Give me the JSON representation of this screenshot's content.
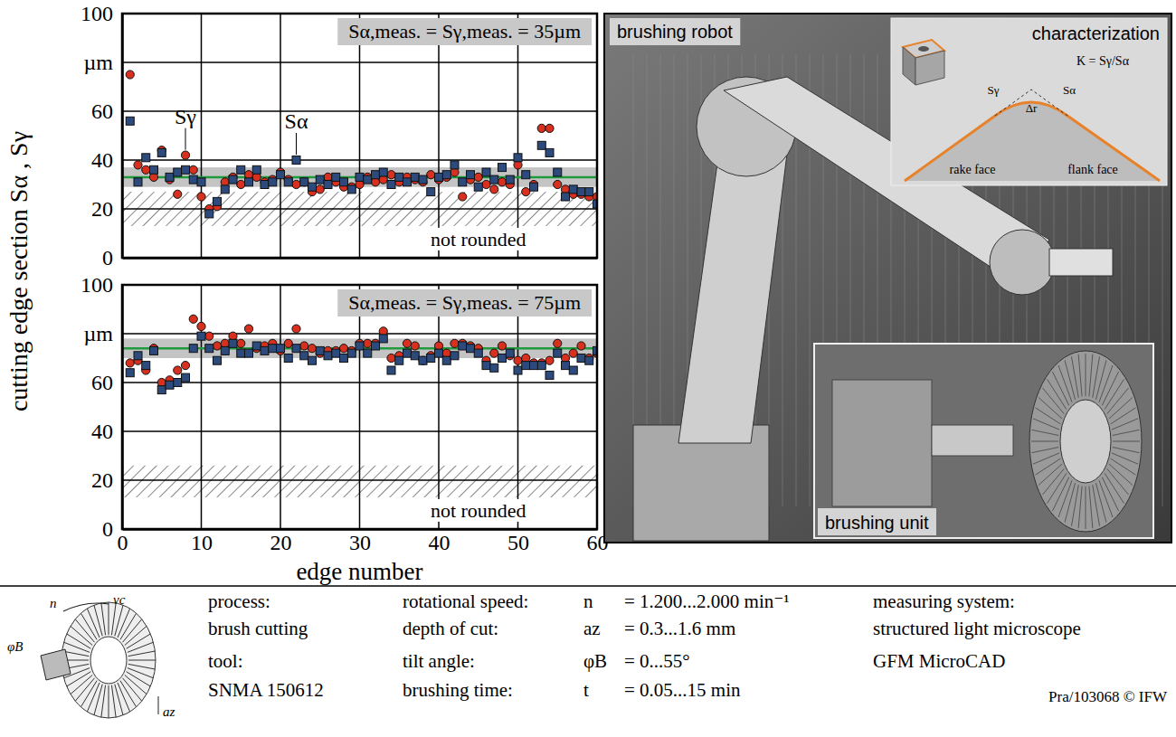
{
  "chart_data": [
    {
      "type": "scatter",
      "title": "Sα,meas. = Sγ,meas. = 35µm",
      "y_label": "cutting edge section Sα , Sγ",
      "x": [
        1,
        2,
        3,
        4,
        5,
        6,
        7,
        8,
        9,
        10,
        11,
        12,
        13,
        14,
        15,
        16,
        17,
        18,
        19,
        20,
        21,
        22,
        23,
        24,
        25,
        26,
        27,
        28,
        29,
        30,
        31,
        32,
        33,
        34,
        35,
        36,
        37,
        38,
        39,
        40,
        41,
        42,
        43,
        44,
        45,
        46,
        47,
        48,
        49,
        50,
        51,
        52,
        53,
        54,
        55,
        56,
        57,
        58,
        59,
        60
      ],
      "series": [
        {
          "name": "Sγ",
          "color": "#d7301f",
          "marker": "circle",
          "values": [
            75,
            38,
            36,
            33,
            44,
            32,
            26,
            42,
            36,
            25,
            20,
            21,
            31,
            33,
            30,
            34,
            33,
            31,
            32,
            35,
            32,
            30,
            31,
            27,
            28,
            33,
            31,
            29,
            29,
            30,
            33,
            31,
            32,
            34,
            31,
            33,
            32,
            31,
            34,
            32,
            33,
            35,
            25,
            32,
            33,
            30,
            28,
            31,
            30,
            38,
            27,
            30,
            53,
            53,
            30,
            28,
            26,
            26,
            25,
            25
          ]
        },
        {
          "name": "Sα",
          "color": "#2c4a7c",
          "marker": "square",
          "values": [
            56,
            31,
            41,
            36,
            43,
            33,
            35,
            36,
            32,
            31,
            18,
            23,
            28,
            32,
            36,
            31,
            36,
            30,
            31,
            34,
            31,
            40,
            31,
            29,
            32,
            30,
            33,
            31,
            28,
            33,
            32,
            34,
            35,
            30,
            33,
            31,
            33,
            32,
            27,
            33,
            34,
            38,
            31,
            34,
            29,
            35,
            32,
            37,
            32,
            41,
            34,
            29,
            46,
            43,
            35,
            25,
            28,
            27,
            27,
            22
          ]
        }
      ],
      "target": 33,
      "tolerance_band": [
        29,
        37
      ],
      "not_rounded_band": [
        13,
        27
      ],
      "annotation": "not rounded",
      "xlim": [
        0,
        60
      ],
      "xticks": [
        0,
        10,
        20,
        30,
        40,
        50,
        60
      ],
      "ylim": [
        0,
        100
      ],
      "yticks": [
        0,
        20,
        40,
        60,
        {
          "value": 80,
          "label": "µm"
        },
        100
      ],
      "grid": true,
      "tick_labels": "y"
    },
    {
      "type": "scatter",
      "title": "Sα,meas. = Sγ,meas. = 75µm",
      "x_label": "edge number",
      "x": [
        1,
        2,
        3,
        4,
        5,
        6,
        7,
        8,
        9,
        10,
        11,
        12,
        13,
        14,
        15,
        16,
        17,
        18,
        19,
        20,
        21,
        22,
        23,
        24,
        25,
        26,
        27,
        28,
        29,
        30,
        31,
        32,
        33,
        34,
        35,
        36,
        37,
        38,
        39,
        40,
        41,
        42,
        43,
        44,
        45,
        46,
        47,
        48,
        49,
        50,
        51,
        52,
        53,
        54,
        55,
        56,
        57,
        58,
        59,
        60
      ],
      "series": [
        {
          "color": "#d7301f",
          "marker": "circle",
          "values": [
            68,
            69,
            65,
            74,
            60,
            61,
            65,
            67,
            86,
            83,
            79,
            75,
            76,
            79,
            76,
            82,
            74,
            75,
            76,
            73,
            76,
            82,
            75,
            74,
            72,
            73,
            73,
            74,
            73,
            76,
            76,
            76,
            81,
            70,
            71,
            76,
            75,
            69,
            71,
            75,
            72,
            76,
            76,
            75,
            74,
            69,
            72,
            75,
            71,
            69,
            70,
            68,
            68,
            69,
            76,
            70,
            72,
            75,
            70,
            72
          ]
        },
        {
          "color": "#2c4a7c",
          "marker": "square",
          "values": [
            64,
            71,
            67,
            73,
            57,
            59,
            60,
            62,
            74,
            79,
            74,
            69,
            73,
            76,
            72,
            72,
            75,
            73,
            74,
            74,
            70,
            74,
            71,
            69,
            73,
            71,
            72,
            70,
            72,
            75,
            72,
            75,
            78,
            65,
            69,
            72,
            71,
            69,
            70,
            72,
            69,
            71,
            75,
            74,
            72,
            67,
            66,
            70,
            72,
            65,
            67,
            67,
            67,
            63,
            72,
            67,
            65,
            70,
            69,
            73
          ]
        }
      ],
      "target": 74,
      "tolerance_band": [
        70,
        78
      ],
      "not_rounded_band": [
        13,
        26
      ],
      "annotation": "not rounded",
      "xlim": [
        0,
        60
      ],
      "xticks": [
        0,
        10,
        20,
        30,
        40,
        50,
        60
      ],
      "ylim": [
        0,
        100
      ],
      "yticks": [
        0,
        20,
        40,
        60,
        {
          "value": 80,
          "label": "µm"
        },
        100
      ],
      "grid": true
    }
  ],
  "photo": {
    "title": "brushing robot",
    "inset_title": "characterization",
    "formula": "K = Sγ/Sα",
    "edge_labels": [
      "Sγ",
      "Δr",
      "Sα"
    ],
    "rake_face": "rake face",
    "flank_face": "flank face",
    "unit_title": "brushing unit"
  },
  "parameters": {
    "icon_labels": [
      "n",
      "vc",
      "φB",
      "az"
    ],
    "process_label": "process:",
    "process": "brush cutting",
    "tool_label": "tool:",
    "tool": "SNMA 150612",
    "rows": [
      {
        "label": "rotational speed:",
        "symbol": "n",
        "value": "= 1.200...2.000 min⁻¹"
      },
      {
        "label": "depth of cut:",
        "symbol": "az",
        "value": "= 0.3...1.6 mm"
      },
      {
        "label": "tilt angle:",
        "symbol": "φB",
        "value": "= 0...55°"
      },
      {
        "label": "brushing time:",
        "symbol": "t",
        "value": "= 0.05...15 min"
      }
    ],
    "measuring_label": "measuring system:",
    "measuring": [
      "structured light microscope",
      "GFM MicroCAD"
    ],
    "credit": "Pra/103068 © IFW"
  }
}
